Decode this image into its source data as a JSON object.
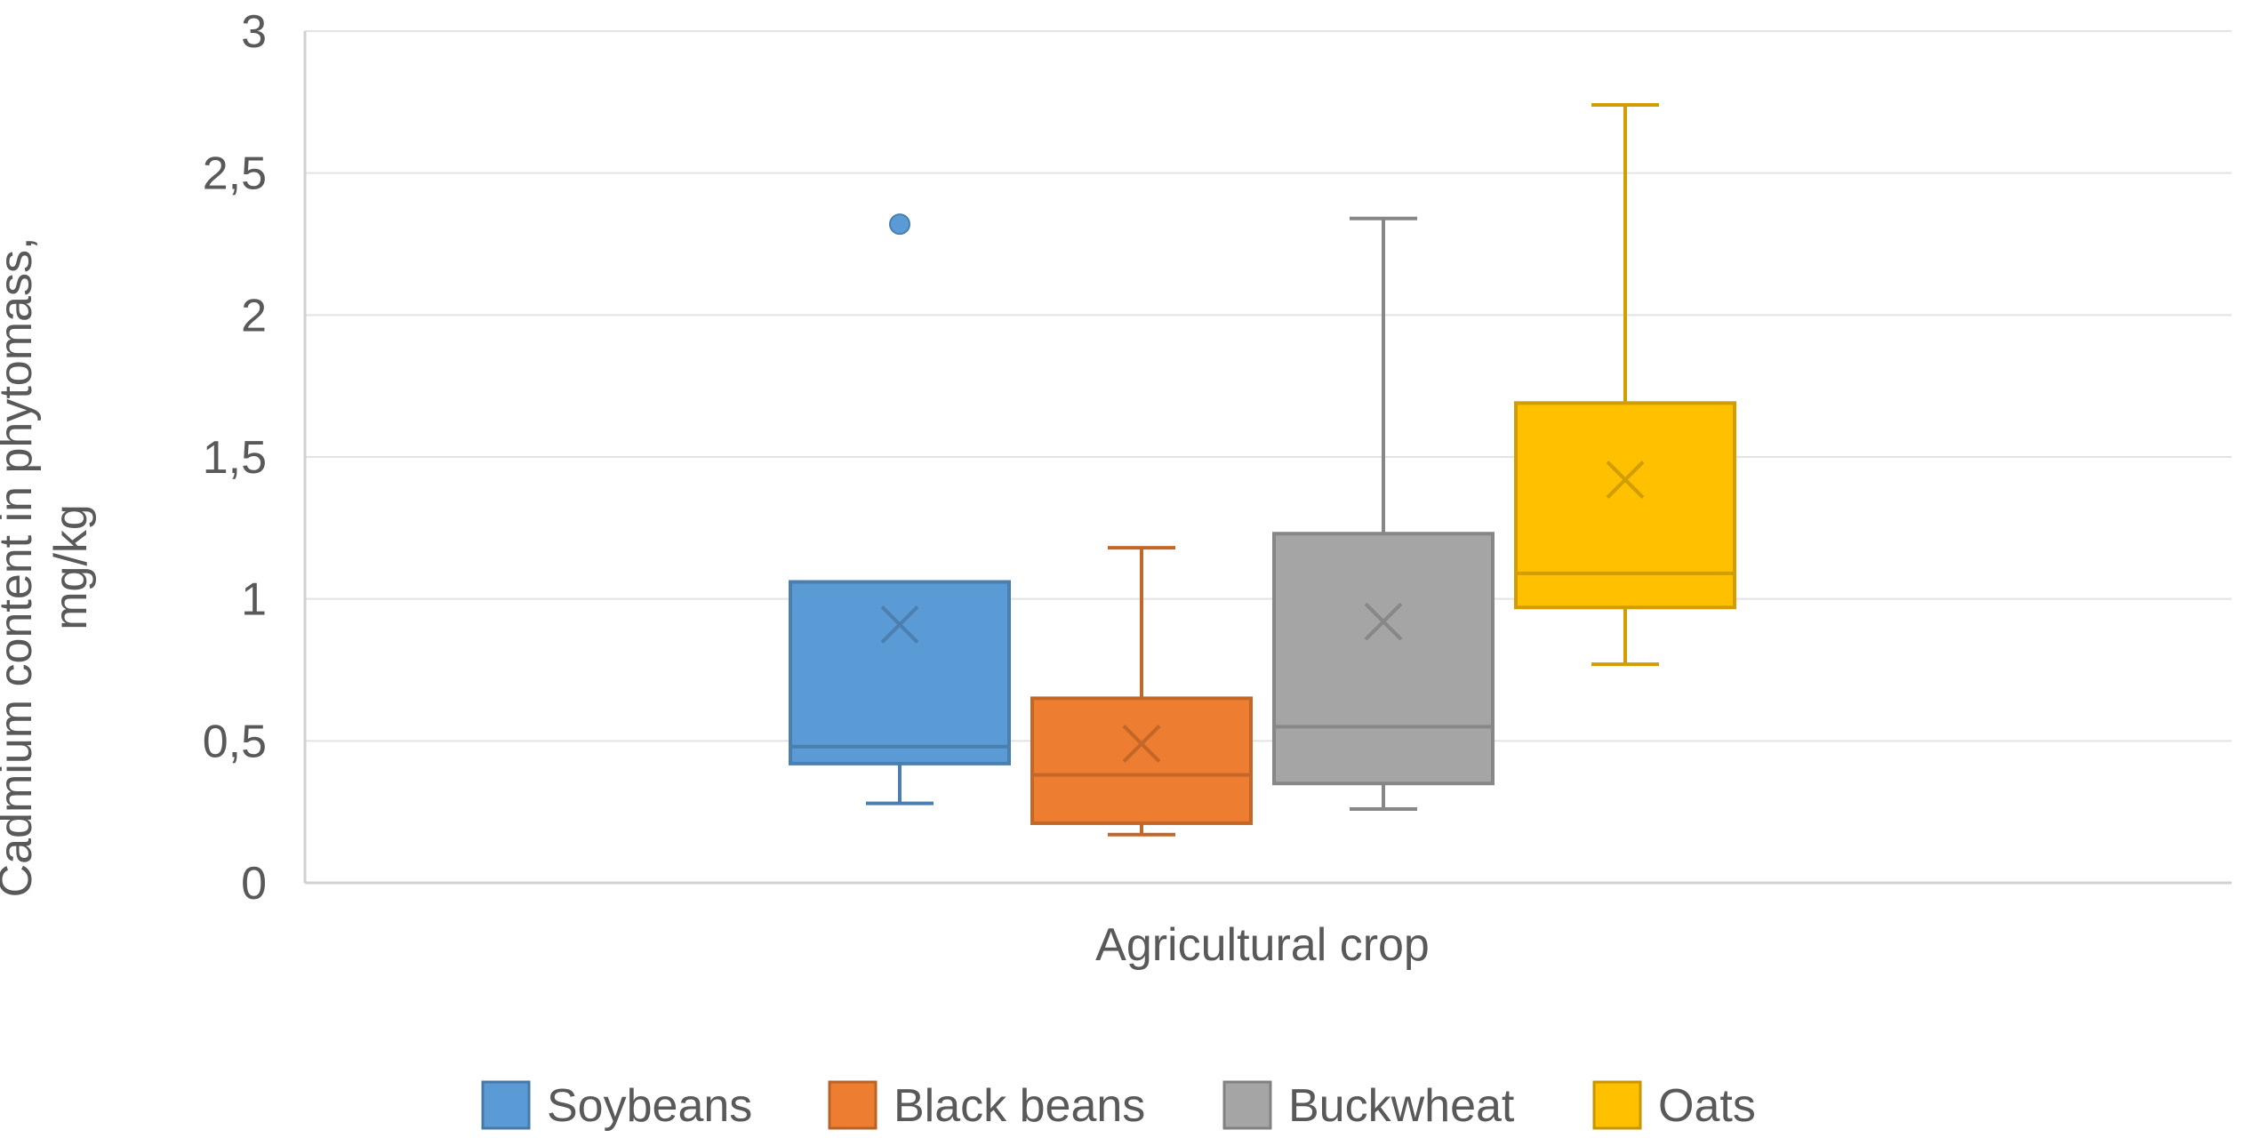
{
  "chart_data": {
    "type": "box",
    "title": "",
    "xlabel": "Agricultural crop",
    "ylabel_lines": [
      "Cadmium content in phytomass,",
      "mg/kg"
    ],
    "ylim": [
      0,
      3
    ],
    "yticks": [
      0,
      0.5,
      1,
      1.5,
      2,
      2.5,
      3
    ],
    "ytick_labels": [
      "0",
      "0,5",
      "1",
      "1,5",
      "2",
      "2,5",
      "3"
    ],
    "grid": true,
    "legend_position": "bottom",
    "series": [
      {
        "name": "Soybeans",
        "color": "#5b9bd5",
        "whisker_low": 0.28,
        "q1": 0.42,
        "median": 0.48,
        "q3": 1.06,
        "whisker_high": 1.06,
        "mean": 0.91,
        "outliers": [
          2.32
        ]
      },
      {
        "name": "Black beans",
        "color": "#ed7d31",
        "whisker_low": 0.17,
        "q1": 0.21,
        "median": 0.38,
        "q3": 0.65,
        "whisker_high": 1.18,
        "mean": 0.49,
        "outliers": []
      },
      {
        "name": "Buckwheat",
        "color": "#a5a5a5",
        "whisker_low": 0.26,
        "q1": 0.35,
        "median": 0.55,
        "q3": 1.23,
        "whisker_high": 2.34,
        "mean": 0.92,
        "outliers": []
      },
      {
        "name": "Oats",
        "color": "#ffc000",
        "whisker_low": 0.77,
        "q1": 0.97,
        "median": 1.09,
        "q3": 1.69,
        "whisker_high": 2.74,
        "mean": 1.42,
        "outliers": []
      }
    ]
  }
}
